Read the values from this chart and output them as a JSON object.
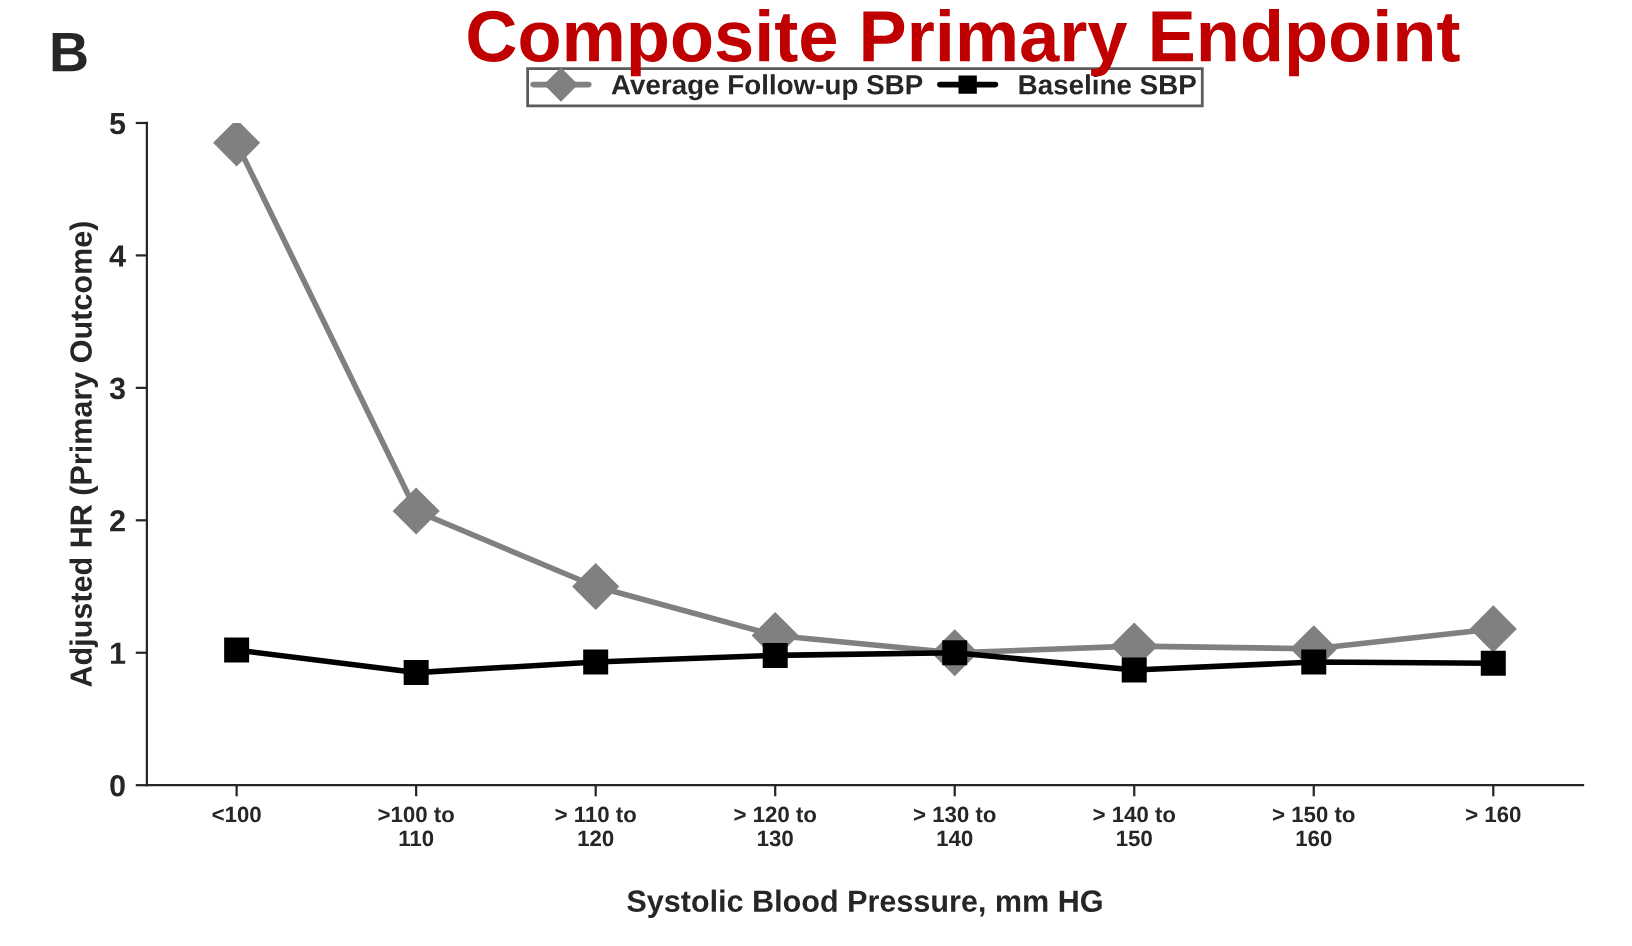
{
  "chart_data": {
    "type": "line",
    "title": "Composite Primary Endpoint",
    "annotations": [
      "B"
    ],
    "xlabel": "Systolic Blood Pressure, mm HG",
    "ylabel": "Adjusted HR (Primary Outcome)",
    "categories": [
      "<100",
      ">100 to\n110",
      "> 110 to\n120",
      "> 120 to\n130",
      "> 130 to\n140",
      "> 140 to\n150",
      "> 150 to\n160",
      "> 160"
    ],
    "series": [
      {
        "name": "Average Follow-up SBP",
        "color": "#808080",
        "marker": "diamond",
        "values": [
          4.85,
          2.07,
          1.5,
          1.13,
          1.0,
          1.05,
          1.03,
          1.18
        ]
      },
      {
        "name": "Baseline SBP",
        "color": "#000000",
        "marker": "square",
        "values": [
          1.02,
          0.85,
          0.93,
          0.98,
          1.0,
          0.87,
          0.93,
          0.92
        ]
      }
    ],
    "ylim": [
      0,
      5
    ],
    "yticks": [
      0,
      1,
      2,
      3,
      4,
      5
    ],
    "grid": false,
    "legend": "top"
  }
}
